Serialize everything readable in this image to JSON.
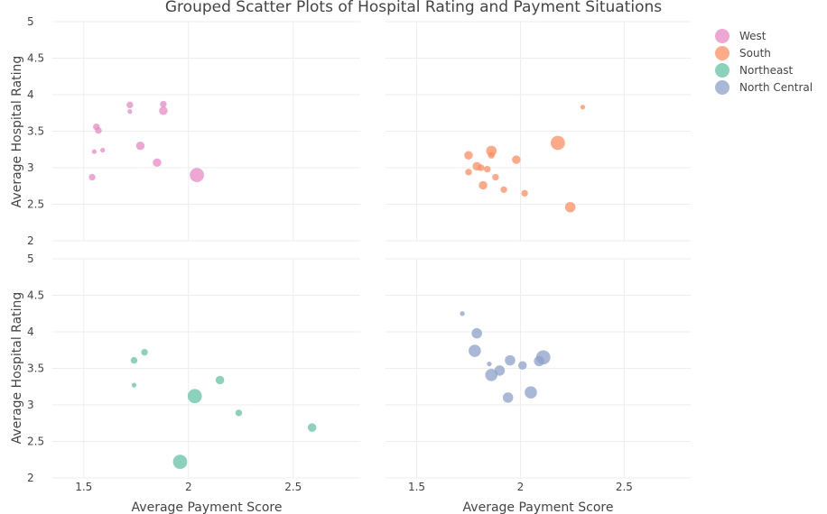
{
  "chart_data": {
    "type": "scatter",
    "title": "Grouped Scatter Plots of Hospital Rating and Payment Situations",
    "xlabel": "Average Payment Score",
    "ylabel": "Average Hospital Rating",
    "xlim": [
      1.35,
      2.82
    ],
    "ylim": [
      2,
      5
    ],
    "xticks": [
      "1.5",
      "2",
      "2.5"
    ],
    "xtick_values": [
      1.5,
      2,
      2.5
    ],
    "yticks": [
      "2",
      "2.5",
      "3",
      "3.5",
      "4",
      "4.5",
      "5"
    ],
    "ytick_values": [
      2,
      2.5,
      3,
      3.5,
      4,
      4.5,
      5
    ],
    "grid": true,
    "legend_placement": "top-right",
    "size_encoding": "marker size varies by point (relative)",
    "panels": [
      {
        "series": "West",
        "color": "#e78ac3",
        "points": [
          {
            "x": 1.54,
            "y": 2.87,
            "s": 1
          },
          {
            "x": 1.55,
            "y": 3.22,
            "s": 0
          },
          {
            "x": 1.56,
            "y": 3.56,
            "s": 1
          },
          {
            "x": 1.57,
            "y": 3.51,
            "s": 1
          },
          {
            "x": 1.59,
            "y": 3.24,
            "s": 0
          },
          {
            "x": 1.72,
            "y": 3.86,
            "s": 1
          },
          {
            "x": 1.72,
            "y": 3.77,
            "s": 0
          },
          {
            "x": 1.77,
            "y": 3.3,
            "s": 2
          },
          {
            "x": 1.85,
            "y": 3.07,
            "s": 2
          },
          {
            "x": 1.88,
            "y": 3.87,
            "s": 1
          },
          {
            "x": 1.88,
            "y": 3.78,
            "s": 2
          },
          {
            "x": 2.04,
            "y": 2.9,
            "s": 5
          }
        ]
      },
      {
        "series": "South",
        "color": "#fc8d62",
        "points": [
          {
            "x": 1.75,
            "y": 3.17,
            "s": 2
          },
          {
            "x": 1.75,
            "y": 2.94,
            "s": 1
          },
          {
            "x": 1.79,
            "y": 3.02,
            "s": 2
          },
          {
            "x": 1.81,
            "y": 3.0,
            "s": 1
          },
          {
            "x": 1.82,
            "y": 2.76,
            "s": 2
          },
          {
            "x": 1.84,
            "y": 2.98,
            "s": 1
          },
          {
            "x": 1.86,
            "y": 3.23,
            "s": 3
          },
          {
            "x": 1.86,
            "y": 3.17,
            "s": 1
          },
          {
            "x": 1.88,
            "y": 2.87,
            "s": 1
          },
          {
            "x": 1.92,
            "y": 2.7,
            "s": 1
          },
          {
            "x": 1.98,
            "y": 3.11,
            "s": 2
          },
          {
            "x": 2.02,
            "y": 2.65,
            "s": 1
          },
          {
            "x": 2.18,
            "y": 3.34,
            "s": 5
          },
          {
            "x": 2.24,
            "y": 2.46,
            "s": 3
          },
          {
            "x": 2.3,
            "y": 3.83,
            "s": 0
          }
        ]
      },
      {
        "series": "Northeast",
        "color": "#66c2a5",
        "points": [
          {
            "x": 1.74,
            "y": 3.61,
            "s": 1
          },
          {
            "x": 1.74,
            "y": 3.27,
            "s": 0
          },
          {
            "x": 1.79,
            "y": 3.72,
            "s": 1
          },
          {
            "x": 1.96,
            "y": 2.22,
            "s": 5
          },
          {
            "x": 2.03,
            "y": 3.12,
            "s": 5
          },
          {
            "x": 2.15,
            "y": 3.34,
            "s": 2
          },
          {
            "x": 2.24,
            "y": 2.89,
            "s": 1
          },
          {
            "x": 2.59,
            "y": 2.69,
            "s": 2
          }
        ]
      },
      {
        "series": "North Central",
        "color": "#8da0cb",
        "points": [
          {
            "x": 1.72,
            "y": 4.25,
            "s": 0
          },
          {
            "x": 1.78,
            "y": 3.74,
            "s": 4
          },
          {
            "x": 1.79,
            "y": 3.98,
            "s": 3
          },
          {
            "x": 1.85,
            "y": 3.56,
            "s": 0
          },
          {
            "x": 1.86,
            "y": 3.41,
            "s": 4
          },
          {
            "x": 1.9,
            "y": 3.47,
            "s": 3
          },
          {
            "x": 1.94,
            "y": 3.1,
            "s": 3
          },
          {
            "x": 1.95,
            "y": 3.61,
            "s": 3
          },
          {
            "x": 2.01,
            "y": 3.54,
            "s": 2
          },
          {
            "x": 2.05,
            "y": 3.17,
            "s": 4
          },
          {
            "x": 2.09,
            "y": 3.6,
            "s": 3
          },
          {
            "x": 2.11,
            "y": 3.65,
            "s": 5
          }
        ]
      }
    ],
    "legend": [
      {
        "label": "West",
        "color": "#e78ac3"
      },
      {
        "label": "South",
        "color": "#fc8d62"
      },
      {
        "label": "Northeast",
        "color": "#66c2a5"
      },
      {
        "label": "North Central",
        "color": "#8da0cb"
      }
    ]
  }
}
